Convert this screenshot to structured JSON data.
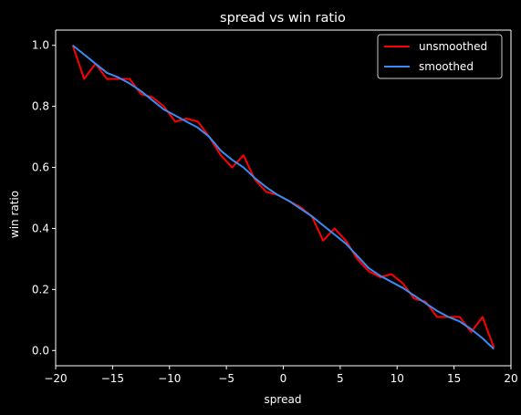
{
  "chart_data": {
    "type": "line",
    "title": "spread vs win ratio",
    "xlabel": "spread",
    "ylabel": "win ratio",
    "xlim": [
      -20,
      20
    ],
    "ylim": [
      -0.05,
      1.05
    ],
    "xticks": [
      -20,
      -15,
      -10,
      -5,
      0,
      5,
      10,
      15,
      20
    ],
    "xtick_labels": [
      "−20",
      "−15",
      "−10",
      "−5",
      "0",
      "5",
      "10",
      "15",
      "20"
    ],
    "yticks": [
      0.0,
      0.2,
      0.4,
      0.6,
      0.8,
      1.0
    ],
    "ytick_labels": [
      "0.0",
      "0.2",
      "0.4",
      "0.6",
      "0.8",
      "1.0"
    ],
    "grid": false,
    "legend_position": "top-right",
    "background": "#000000",
    "foreground": "#ffffff",
    "series": [
      {
        "name": "unsmoothed",
        "color": "#ff0000",
        "x": [
          -18.5,
          -17.5,
          -16.5,
          -15.5,
          -14.5,
          -13.5,
          -12.5,
          -11.5,
          -10.5,
          -9.5,
          -8.5,
          -7.5,
          -6.5,
          -5.5,
          -4.5,
          -3.5,
          -2.5,
          -1.5,
          -0.5,
          0.5,
          1.5,
          2.5,
          3.5,
          4.5,
          5.5,
          6.5,
          7.5,
          8.5,
          9.5,
          10.5,
          11.5,
          12.5,
          13.5,
          14.5,
          15.5,
          16.5,
          17.5,
          18.5
        ],
        "y": [
          1.0,
          0.89,
          0.94,
          0.89,
          0.89,
          0.89,
          0.84,
          0.83,
          0.8,
          0.75,
          0.76,
          0.75,
          0.7,
          0.64,
          0.6,
          0.64,
          0.56,
          0.52,
          0.51,
          0.49,
          0.47,
          0.44,
          0.36,
          0.4,
          0.36,
          0.3,
          0.26,
          0.24,
          0.25,
          0.22,
          0.17,
          0.16,
          0.11,
          0.11,
          0.11,
          0.06,
          0.11,
          0.01
        ]
      },
      {
        "name": "smoothed",
        "color": "#3a8cf5",
        "x": [
          -18.5,
          -17.5,
          -16.5,
          -15.5,
          -14.5,
          -13.5,
          -12.5,
          -11.5,
          -10.5,
          -9.5,
          -8.5,
          -7.5,
          -6.5,
          -5.5,
          -4.5,
          -3.5,
          -2.5,
          -1.5,
          -0.5,
          0.5,
          1.5,
          2.5,
          3.5,
          4.5,
          5.5,
          6.5,
          7.5,
          8.5,
          9.5,
          10.5,
          11.5,
          12.5,
          13.5,
          14.5,
          15.5,
          16.5,
          17.5,
          18.5
        ],
        "y": [
          1.0,
          0.97,
          0.94,
          0.91,
          0.895,
          0.875,
          0.85,
          0.82,
          0.79,
          0.77,
          0.75,
          0.73,
          0.7,
          0.655,
          0.625,
          0.6,
          0.565,
          0.535,
          0.51,
          0.49,
          0.465,
          0.44,
          0.41,
          0.38,
          0.35,
          0.31,
          0.27,
          0.245,
          0.225,
          0.205,
          0.18,
          0.155,
          0.13,
          0.11,
          0.095,
          0.07,
          0.04,
          0.005
        ]
      }
    ]
  }
}
